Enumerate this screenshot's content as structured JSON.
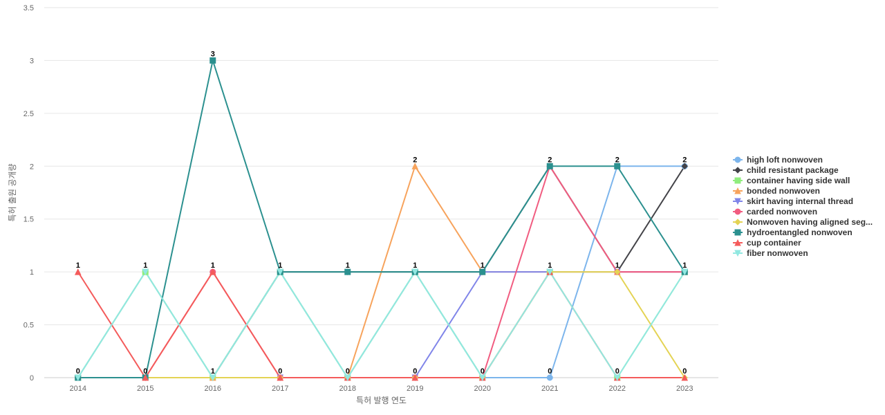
{
  "chart_data": {
    "type": "line",
    "title": "",
    "xlabel": "특허 발행 연도",
    "ylabel": "특허 출원 공개량",
    "categories": [
      "2014",
      "2015",
      "2016",
      "2017",
      "2018",
      "2019",
      "2020",
      "2021",
      "2022",
      "2023"
    ],
    "y_ticks": [
      "0",
      "0.5",
      "1",
      "1.5",
      "2",
      "2.5",
      "3",
      "3.5"
    ],
    "ylim": [
      0,
      3.5
    ],
    "grid": "horizontal",
    "legend_position": "right",
    "data_labels": [
      "1",
      "1",
      "3",
      "1",
      "1",
      "2",
      "1",
      "2",
      "2",
      "2",
      "0",
      "0",
      "1",
      "0",
      "0",
      "0",
      "0",
      "0",
      "0",
      "0",
      "1",
      "1",
      "1",
      "1",
      "1",
      "1"
    ],
    "series": [
      {
        "name": "high loft nonwoven",
        "color": "#7cb5ec",
        "marker": "circle",
        "values": [
          0,
          1,
          0,
          1,
          0,
          1,
          0,
          0,
          2,
          2
        ]
      },
      {
        "name": "child resistant package",
        "color": "#434348",
        "marker": "diamond",
        "values": [
          0,
          0,
          0,
          1,
          1,
          1,
          1,
          2,
          1,
          2
        ]
      },
      {
        "name": "container having side wall",
        "color": "#90ed7d",
        "marker": "square",
        "values": [
          0,
          1,
          0,
          1,
          0,
          1,
          0,
          1,
          0,
          1
        ]
      },
      {
        "name": "bonded nonwoven",
        "color": "#f7a35c",
        "marker": "triangle",
        "values": [
          0,
          0,
          0,
          0,
          0,
          2,
          1,
          1,
          1,
          1
        ]
      },
      {
        "name": "skirt having internal thread",
        "color": "#8085e9",
        "marker": "triangle-down",
        "values": [
          0,
          0,
          0,
          0,
          0,
          0,
          1,
          1,
          1,
          1
        ]
      },
      {
        "name": "carded nonwoven",
        "color": "#f15c80",
        "marker": "circle",
        "values": [
          0,
          0,
          1,
          0,
          0,
          0,
          0,
          2,
          1,
          1
        ]
      },
      {
        "name": "Nonwoven having aligned seg...",
        "color": "#e4d354",
        "marker": "diamond",
        "values": [
          0,
          0,
          0,
          0,
          0,
          0,
          0,
          1,
          1,
          0
        ]
      },
      {
        "name": "hydroentangled nonwoven",
        "color": "#2b908f",
        "marker": "square",
        "values": [
          0,
          0,
          3,
          1,
          1,
          1,
          1,
          2,
          2,
          1
        ]
      },
      {
        "name": "cup container",
        "color": "#f45b5b",
        "marker": "triangle",
        "values": [
          1,
          0,
          1,
          0,
          0,
          0,
          0,
          1,
          0,
          0
        ]
      },
      {
        "name": "fiber nonwoven",
        "color": "#91e8e1",
        "marker": "triangle-down",
        "values": [
          0,
          1,
          0,
          1,
          0,
          1,
          0,
          1,
          0,
          1
        ]
      }
    ]
  }
}
